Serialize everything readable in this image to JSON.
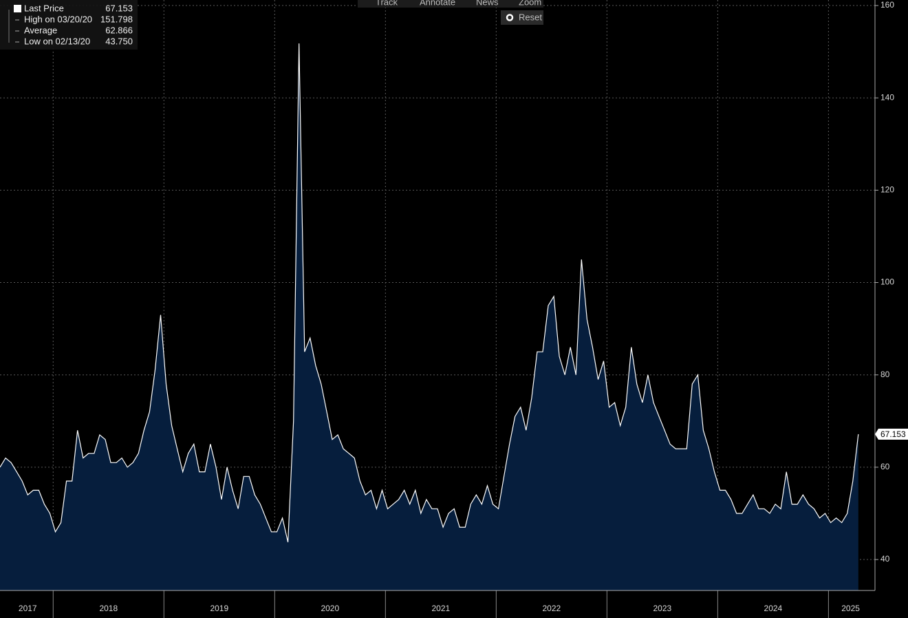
{
  "chart_data": {
    "type": "area",
    "x": [
      2017.52,
      2017.57,
      2017.62,
      2017.67,
      2017.72,
      2017.77,
      2017.82,
      2017.87,
      2017.92,
      2017.97,
      2018.02,
      2018.07,
      2018.12,
      2018.17,
      2018.22,
      2018.27,
      2018.32,
      2018.37,
      2018.42,
      2018.47,
      2018.52,
      2018.57,
      2018.62,
      2018.67,
      2018.72,
      2018.77,
      2018.82,
      2018.87,
      2018.92,
      2018.97,
      2019.02,
      2019.07,
      2019.12,
      2019.17,
      2019.22,
      2019.27,
      2019.32,
      2019.37,
      2019.42,
      2019.47,
      2019.52,
      2019.57,
      2019.62,
      2019.67,
      2019.72,
      2019.77,
      2019.82,
      2019.87,
      2019.92,
      2019.97,
      2020.02,
      2020.07,
      2020.12,
      2020.17,
      2020.22,
      2020.27,
      2020.32,
      2020.37,
      2020.42,
      2020.47,
      2020.52,
      2020.57,
      2020.62,
      2020.67,
      2020.72,
      2020.77,
      2020.82,
      2020.87,
      2020.92,
      2020.97,
      2021.02,
      2021.07,
      2021.12,
      2021.17,
      2021.22,
      2021.27,
      2021.32,
      2021.37,
      2021.42,
      2021.47,
      2021.52,
      2021.57,
      2021.62,
      2021.67,
      2021.72,
      2021.77,
      2021.82,
      2021.87,
      2021.92,
      2021.97,
      2022.02,
      2022.07,
      2022.12,
      2022.17,
      2022.22,
      2022.27,
      2022.32,
      2022.37,
      2022.42,
      2022.47,
      2022.52,
      2022.57,
      2022.62,
      2022.67,
      2022.72,
      2022.77,
      2022.82,
      2022.87,
      2022.92,
      2022.97,
      2023.02,
      2023.07,
      2023.12,
      2023.17,
      2023.22,
      2023.27,
      2023.32,
      2023.37,
      2023.42,
      2023.47,
      2023.52,
      2023.57,
      2023.62,
      2023.67,
      2023.72,
      2023.77,
      2023.82,
      2023.87,
      2023.92,
      2023.97,
      2024.02,
      2024.07,
      2024.12,
      2024.17,
      2024.22,
      2024.27,
      2024.32,
      2024.37,
      2024.42,
      2024.47,
      2024.52,
      2024.57,
      2024.62,
      2024.67,
      2024.72,
      2024.77,
      2024.82,
      2024.87,
      2024.92,
      2024.97,
      2025.02,
      2025.07,
      2025.12,
      2025.17,
      2025.22,
      2025.27
    ],
    "series": [
      {
        "name": "Last Price",
        "color": "#ffffff",
        "fill": "#061e3d",
        "values": [
          60,
          62,
          61,
          59,
          57,
          54,
          55,
          55,
          52,
          50,
          46,
          48,
          57,
          57,
          68,
          62,
          63,
          63,
          67,
          66,
          61,
          61,
          62,
          60,
          61,
          63,
          68,
          72,
          81,
          93,
          78,
          69,
          64,
          59,
          63,
          65,
          59,
          59,
          65,
          60,
          53,
          60,
          55,
          51,
          58,
          58,
          54,
          52,
          49,
          46,
          46,
          49,
          43.75,
          70,
          151.798,
          85,
          88,
          82,
          78,
          72,
          66,
          67,
          64,
          63,
          62,
          57,
          54,
          55,
          51,
          55,
          51,
          52,
          53,
          55,
          52,
          55,
          50,
          53,
          51,
          51,
          47,
          50,
          51,
          47,
          47,
          52,
          54,
          52,
          56,
          52,
          51,
          58,
          65,
          71,
          73,
          68,
          75,
          85,
          85,
          95,
          97,
          84,
          80,
          86,
          80,
          105,
          92,
          86,
          79,
          83,
          73,
          74,
          69,
          73,
          86,
          78,
          74,
          80,
          74,
          71,
          68,
          65,
          64,
          64,
          64,
          78,
          80,
          68,
          64,
          59,
          55,
          55,
          53,
          50,
          50,
          52,
          54,
          51,
          51,
          50,
          52,
          51,
          59,
          52,
          52,
          54,
          52,
          51,
          49,
          50,
          48,
          49,
          48,
          50,
          57,
          67.153
        ]
      }
    ],
    "xlim": [
      2017.52,
      2025.42
    ],
    "ylim": [
      33.3,
      161.2
    ],
    "yticks": [
      40,
      60,
      80,
      100,
      120,
      140,
      160
    ],
    "xticks": [
      {
        "value": 2017.77,
        "label": "2017"
      },
      {
        "value": 2018.5,
        "label": "2018"
      },
      {
        "value": 2019.5,
        "label": "2019"
      },
      {
        "value": 2020.5,
        "label": "2020"
      },
      {
        "value": 2021.5,
        "label": "2021"
      },
      {
        "value": 2022.5,
        "label": "2022"
      },
      {
        "value": 2023.5,
        "label": "2023"
      },
      {
        "value": 2024.5,
        "label": "2024"
      },
      {
        "value": 2025.2,
        "label": "2025"
      }
    ],
    "xgrid": [
      2018,
      2019,
      2020,
      2021,
      2022,
      2023,
      2024,
      2025
    ],
    "grid": true,
    "last_value_label": "67.153",
    "legend": [
      {
        "name": "Last Price",
        "value": "67.153"
      },
      {
        "name": "High on 03/20/20",
        "value": "151.798"
      },
      {
        "name": "Average",
        "value": "62.866"
      },
      {
        "name": "Low on 02/13/20",
        "value": "43.750"
      }
    ]
  },
  "toolbar": [
    "Track",
    "Annotate",
    "News",
    "Zoom"
  ],
  "reset": "Reset"
}
